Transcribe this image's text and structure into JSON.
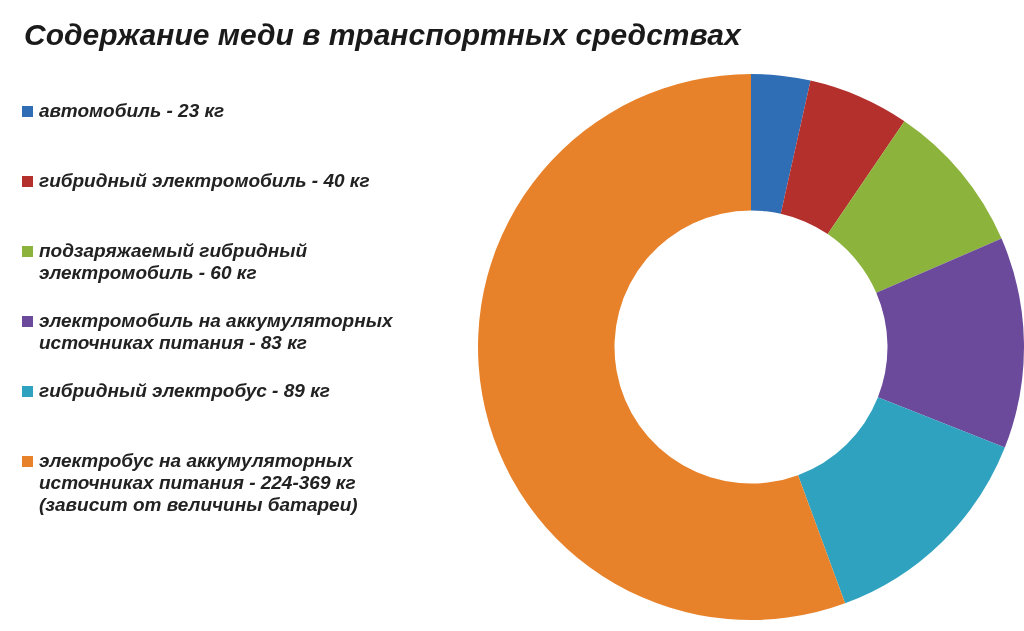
{
  "chart_data": {
    "type": "donut",
    "title": "Содержание меди в транспортных средствах",
    "categories": [
      "автомобиль - 23 кг",
      "гибридный электромобиль - 40 кг",
      "подзаряжаемый гибридный электромобиль - 60 кг",
      "электромобиль на аккумуляторных источниках питания - 83 кг",
      "гибридный электробус - 89 кг",
      "электробус на аккумуляторных источниках питания - 224-369 кг (зависит от величины батареи)"
    ],
    "values": [
      3.5,
      6.0,
      9.0,
      12.5,
      13.4,
      55.6
    ],
    "colors": [
      "#2f6db5",
      "#b3302d",
      "#8cb33b",
      "#6b4a9b",
      "#2fa2bf",
      "#e8822a"
    ],
    "legend": "left"
  }
}
